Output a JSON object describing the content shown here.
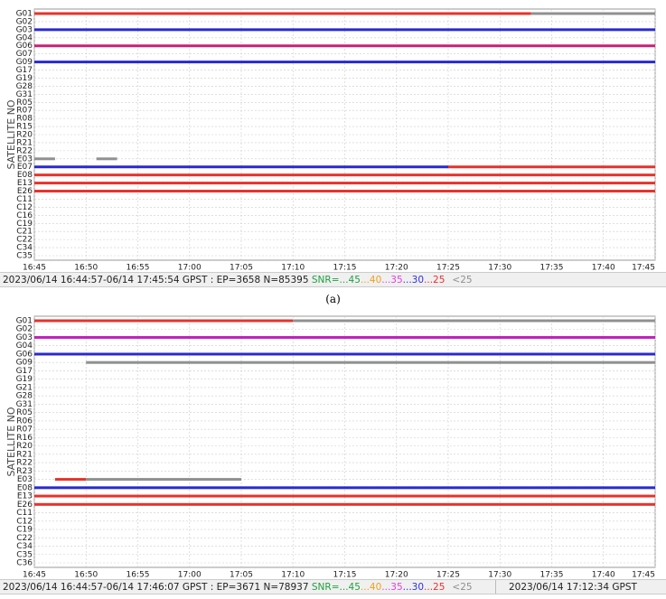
{
  "panels": [
    {
      "y_label": "SATELLITE NO",
      "satellites": [
        "G01",
        "G02",
        "G03",
        "G04",
        "G06",
        "G07",
        "G09",
        "G17",
        "G19",
        "G28",
        "G31",
        "R05",
        "R07",
        "R08",
        "R15",
        "R20",
        "R21",
        "R22",
        "E03",
        "E07",
        "E08",
        "E13",
        "E26",
        "C11",
        "C12",
        "C16",
        "C19",
        "C21",
        "C22",
        "C34",
        "C35"
      ],
      "xticks": [
        "16:45",
        "16:50",
        "16:55",
        "17:00",
        "17:05",
        "17:10",
        "17:15",
        "17:20",
        "17:25",
        "17:30",
        "17:35",
        "17:40",
        "17:45"
      ],
      "tracks": [
        {
          "sat": 0,
          "segments": [
            {
              "from": "16:45",
              "to": "17:33",
              "color": "#e8322a"
            },
            {
              "from": "17:33",
              "to": "17:45",
              "color": "#909090"
            }
          ]
        },
        {
          "sat": 2,
          "segments": [
            {
              "from": "16:45",
              "to": "17:45",
              "color": "#2a2ad0"
            }
          ]
        },
        {
          "sat": 4,
          "segments": [
            {
              "from": "16:45",
              "to": "17:45",
              "color": "#c8207a"
            }
          ]
        },
        {
          "sat": 6,
          "segments": [
            {
              "from": "16:45",
              "to": "17:45",
              "color": "#2a2ad0"
            }
          ]
        },
        {
          "sat": 18,
          "segments": [
            {
              "from": "16:45",
              "to": "16:47",
              "color": "#909090"
            },
            {
              "from": "16:51",
              "to": "16:53",
              "color": "#909090"
            }
          ]
        },
        {
          "sat": 19,
          "segments": [
            {
              "from": "16:45",
              "to": "17:25",
              "color": "#2a2ad0"
            },
            {
              "from": "17:25",
              "to": "17:45",
              "color": "#e8322a"
            }
          ]
        },
        {
          "sat": 20,
          "segments": [
            {
              "from": "16:45",
              "to": "17:45",
              "color": "#e8322a"
            }
          ]
        },
        {
          "sat": 21,
          "segments": [
            {
              "from": "16:45",
              "to": "17:45",
              "color": "#e8322a"
            }
          ]
        },
        {
          "sat": 22,
          "segments": [
            {
              "from": "16:45",
              "to": "17:45",
              "color": "#e8322a"
            }
          ]
        }
      ],
      "status": "2023/06/14 16:44:57-06/14 17:45:54 GPST : EP=3658 N=85395",
      "snr_legend": [
        {
          "label": "SNR=",
          "color": "#20a040"
        },
        {
          "label": "...45",
          "color": "#20a040"
        },
        {
          "label": "...40",
          "color": "#f0a020"
        },
        {
          "label": "...35",
          "color": "#e040e0"
        },
        {
          "label": "...30",
          "color": "#3030e0"
        },
        {
          "label": "...25",
          "color": "#e83030"
        },
        {
          "label": "<25",
          "color": "#909090"
        }
      ],
      "caption": "(a)"
    },
    {
      "y_label": "SATELLITE NO",
      "satellites": [
        "G01",
        "G02",
        "G03",
        "G04",
        "G06",
        "G09",
        "G17",
        "G19",
        "G21",
        "G28",
        "G31",
        "R05",
        "R06",
        "R07",
        "R16",
        "R20",
        "R21",
        "R22",
        "R23",
        "E03",
        "E08",
        "E13",
        "E26",
        "C11",
        "C12",
        "C19",
        "C22",
        "C34",
        "C35",
        "C36"
      ],
      "xticks": [
        "16:45",
        "16:50",
        "16:55",
        "17:00",
        "17:05",
        "17:10",
        "17:15",
        "17:20",
        "17:25",
        "17:30",
        "17:35",
        "17:40",
        "17:45"
      ],
      "tracks": [
        {
          "sat": 0,
          "segments": [
            {
              "from": "16:45",
              "to": "17:10",
              "color": "#e8322a"
            },
            {
              "from": "17:10",
              "to": "17:45",
              "color": "#909090"
            }
          ]
        },
        {
          "sat": 2,
          "segments": [
            {
              "from": "16:45",
              "to": "17:45",
              "color": "#c020c0"
            }
          ]
        },
        {
          "sat": 4,
          "segments": [
            {
              "from": "16:45",
              "to": "17:45",
              "color": "#2a2ad0"
            }
          ]
        },
        {
          "sat": 5,
          "segments": [
            {
              "from": "16:50",
              "to": "17:45",
              "color": "#909090"
            }
          ]
        },
        {
          "sat": 19,
          "segments": [
            {
              "from": "16:47",
              "to": "16:50",
              "color": "#e8322a"
            },
            {
              "from": "16:50",
              "to": "17:05",
              "color": "#909090"
            }
          ]
        },
        {
          "sat": 20,
          "segments": [
            {
              "from": "16:45",
              "to": "17:45",
              "color": "#2a2ad0"
            }
          ]
        },
        {
          "sat": 21,
          "segments": [
            {
              "from": "16:45",
              "to": "17:45",
              "color": "#e8322a"
            }
          ]
        },
        {
          "sat": 22,
          "segments": [
            {
              "from": "16:45",
              "to": "17:45",
              "color": "#e8322a"
            }
          ]
        }
      ],
      "status": "2023/06/14 16:44:57-06/14 17:46:07 GPST : EP=3671 N=78937",
      "snr_legend": [
        {
          "label": "SNR=",
          "color": "#20a040"
        },
        {
          "label": "...45",
          "color": "#20a040"
        },
        {
          "label": "...40",
          "color": "#f0a020"
        },
        {
          "label": "...35",
          "color": "#e040e0"
        },
        {
          "label": "...30",
          "color": "#3030e0"
        },
        {
          "label": "...25",
          "color": "#e83030"
        },
        {
          "label": "<25",
          "color": "#909090"
        }
      ],
      "cursor_time": "2023/06/14 17:12:34 GPST"
    }
  ]
}
